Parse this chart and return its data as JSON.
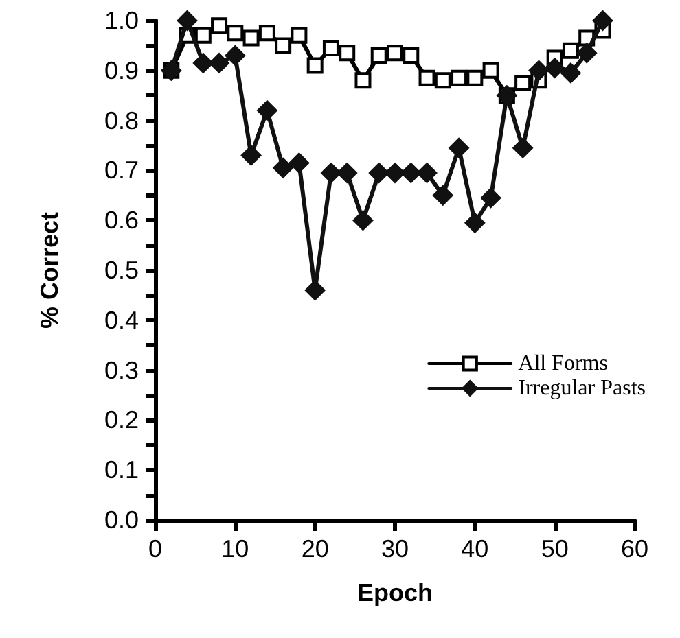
{
  "chart_data": {
    "type": "line",
    "xlabel": "Epoch",
    "ylabel": "% Correct",
    "x": [
      2,
      4,
      6,
      8,
      10,
      12,
      14,
      16,
      18,
      20,
      22,
      24,
      26,
      28,
      30,
      32,
      34,
      36,
      38,
      40,
      42,
      44,
      46,
      48,
      50,
      52,
      54,
      56
    ],
    "series": [
      {
        "name": "All Forms",
        "color": "#000000",
        "marker": "square",
        "values": [
          0.9,
          0.97,
          0.97,
          0.99,
          0.975,
          0.965,
          0.975,
          0.95,
          0.97,
          0.91,
          0.945,
          0.935,
          0.88,
          0.93,
          0.935,
          0.93,
          0.885,
          0.88,
          0.885,
          0.885,
          0.9,
          0.85,
          0.875,
          0.88,
          0.925,
          0.94,
          0.965,
          0.98
        ]
      },
      {
        "name": "Irregular Pasts",
        "color": "#111111",
        "marker": "diamond",
        "values": [
          0.9,
          1.0,
          0.915,
          0.915,
          0.93,
          0.73,
          0.82,
          0.705,
          0.715,
          0.46,
          0.695,
          0.695,
          0.6,
          0.695,
          0.695,
          0.695,
          0.695,
          0.65,
          0.745,
          0.595,
          0.645,
          0.85,
          0.745,
          0.9,
          0.905,
          0.895,
          0.935,
          1.0
        ]
      }
    ],
    "xlim": [
      0,
      60
    ],
    "xticks": [
      0,
      10,
      20,
      30,
      40,
      50,
      60
    ],
    "ylim": [
      0,
      1
    ],
    "yticks": [
      {
        "value": 0,
        "label": "0.0"
      },
      {
        "value": 0.05,
        "label": null
      },
      {
        "value": 0.1,
        "label": "0.1"
      },
      {
        "value": 0.15,
        "label": null
      },
      {
        "value": 0.2,
        "label": "0.2"
      },
      {
        "value": 0.25,
        "label": null
      },
      {
        "value": 0.3,
        "label": "0.3"
      },
      {
        "value": 0.35,
        "label": null
      },
      {
        "value": 0.4,
        "label": "0.4"
      },
      {
        "value": 0.45,
        "label": null
      },
      {
        "value": 0.5,
        "label": "0.5"
      },
      {
        "value": 0.55,
        "label": null
      },
      {
        "value": 0.6,
        "label": "0.6"
      },
      {
        "value": 0.65,
        "label": null
      },
      {
        "value": 0.7,
        "label": "0.7"
      },
      {
        "value": 0.75,
        "label": null
      },
      {
        "value": 0.8,
        "label": "0.8"
      },
      {
        "value": 0.85,
        "label": null
      },
      {
        "value": 0.9,
        "label": "0.9"
      },
      {
        "value": 0.95,
        "label": null
      },
      {
        "value": 1,
        "label": "1.0"
      }
    ],
    "grid": false,
    "legend": "right",
    "line_style": "solid"
  }
}
